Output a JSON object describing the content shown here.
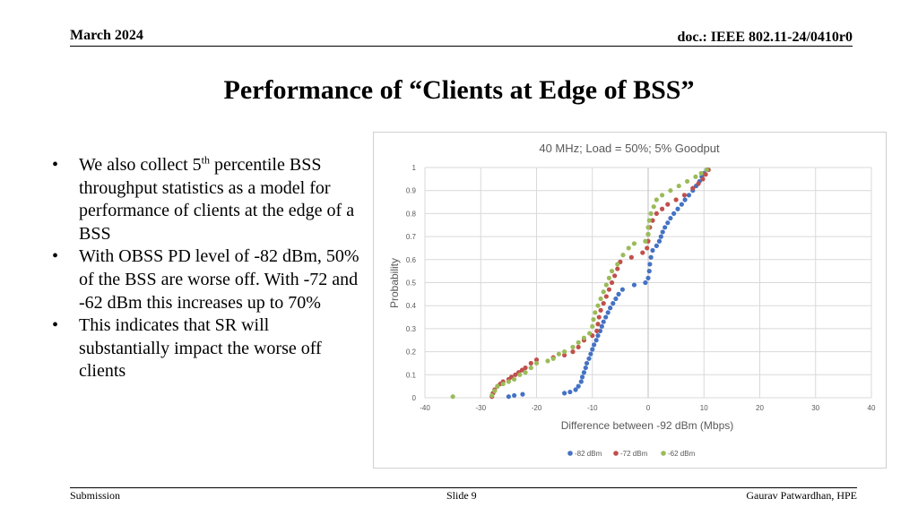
{
  "header": {
    "date": "March 2024",
    "doc_id": "doc.: IEEE 802.11-24/0410r0"
  },
  "title": "Performance of “Clients at Edge of BSS”",
  "bullets": [
    {
      "pre": "We also collect 5",
      "sup": "th",
      "post": " percentile BSS throughput statistics as a model for performance of clients at the edge of a BSS"
    },
    {
      "text": "With OBSS PD level of -82 dBm, 50% of the BSS are worse off. With -72 and -62 dBm this increases up to 70%"
    },
    {
      "text": "This indicates that SR will substantially impact the worse off clients"
    }
  ],
  "bullet_symbol": "•",
  "chart_data": {
    "type": "scatter",
    "title": "40 MHz; Load = 50%; 5% Goodput",
    "xlabel": "Difference between -92 dBm (Mbps)",
    "ylabel": "Probability",
    "xlim": [
      -40,
      40
    ],
    "ylim": [
      0,
      1
    ],
    "xticks": [
      -40,
      -30,
      -20,
      -10,
      0,
      10,
      20,
      30,
      40
    ],
    "yticks": [
      0,
      0.1,
      0.2,
      0.3,
      0.4,
      0.5,
      0.6,
      0.7,
      0.8,
      0.9,
      1
    ],
    "grid": true,
    "legend_position": "bottom",
    "series": [
      {
        "name": "-82 dBm",
        "color": "#4472C4",
        "points": [
          [
            -25,
            0.005
          ],
          [
            -24,
            0.01
          ],
          [
            -22.5,
            0.015
          ],
          [
            -15,
            0.02
          ],
          [
            -14,
            0.025
          ],
          [
            -13,
            0.035
          ],
          [
            -12.5,
            0.05
          ],
          [
            -12,
            0.07
          ],
          [
            -11.8,
            0.09
          ],
          [
            -11.5,
            0.11
          ],
          [
            -11.2,
            0.13
          ],
          [
            -11,
            0.15
          ],
          [
            -10.6,
            0.17
          ],
          [
            -10.3,
            0.19
          ],
          [
            -10,
            0.21
          ],
          [
            -9.7,
            0.23
          ],
          [
            -9.3,
            0.25
          ],
          [
            -9,
            0.27
          ],
          [
            -8.6,
            0.29
          ],
          [
            -8.3,
            0.31
          ],
          [
            -8,
            0.33
          ],
          [
            -7.6,
            0.35
          ],
          [
            -7.2,
            0.37
          ],
          [
            -6.8,
            0.39
          ],
          [
            -6.3,
            0.41
          ],
          [
            -5.8,
            0.43
          ],
          [
            -5.3,
            0.45
          ],
          [
            -4.6,
            0.47
          ],
          [
            -2.5,
            0.49
          ],
          [
            -0.5,
            0.5
          ],
          [
            0,
            0.52
          ],
          [
            0.2,
            0.55
          ],
          [
            0.3,
            0.58
          ],
          [
            0.5,
            0.61
          ],
          [
            0.8,
            0.64
          ],
          [
            1.5,
            0.66
          ],
          [
            2,
            0.68
          ],
          [
            2.3,
            0.7
          ],
          [
            2.6,
            0.72
          ],
          [
            3,
            0.74
          ],
          [
            3.5,
            0.76
          ],
          [
            4,
            0.78
          ],
          [
            4.6,
            0.8
          ],
          [
            5.3,
            0.82
          ],
          [
            6,
            0.84
          ],
          [
            6.6,
            0.86
          ],
          [
            7.3,
            0.88
          ],
          [
            8,
            0.9
          ],
          [
            8.6,
            0.92
          ],
          [
            9.2,
            0.94
          ],
          [
            9.6,
            0.96
          ],
          [
            10,
            0.975
          ],
          [
            10.5,
            0.99
          ]
        ]
      },
      {
        "name": "-72 dBm",
        "color": "#C0504D",
        "points": [
          [
            -28,
            0.005
          ],
          [
            -27.8,
            0.02
          ],
          [
            -27.5,
            0.035
          ],
          [
            -27,
            0.05
          ],
          [
            -26.5,
            0.06
          ],
          [
            -26,
            0.07
          ],
          [
            -25,
            0.08
          ],
          [
            -24.5,
            0.09
          ],
          [
            -23.8,
            0.1
          ],
          [
            -23.2,
            0.11
          ],
          [
            -22.6,
            0.12
          ],
          [
            -22,
            0.13
          ],
          [
            -21,
            0.15
          ],
          [
            -20,
            0.165
          ],
          [
            -17,
            0.175
          ],
          [
            -15,
            0.185
          ],
          [
            -13.5,
            0.2
          ],
          [
            -12.5,
            0.22
          ],
          [
            -11.5,
            0.25
          ],
          [
            -10,
            0.27
          ],
          [
            -9.2,
            0.29
          ],
          [
            -9,
            0.32
          ],
          [
            -8.8,
            0.35
          ],
          [
            -8.5,
            0.38
          ],
          [
            -8,
            0.41
          ],
          [
            -7.5,
            0.44
          ],
          [
            -7,
            0.47
          ],
          [
            -6.5,
            0.5
          ],
          [
            -6,
            0.53
          ],
          [
            -5.5,
            0.56
          ],
          [
            -5,
            0.59
          ],
          [
            -3,
            0.61
          ],
          [
            -1,
            0.63
          ],
          [
            -0.2,
            0.65
          ],
          [
            0,
            0.68
          ],
          [
            0,
            0.71
          ],
          [
            0.3,
            0.74
          ],
          [
            0.8,
            0.77
          ],
          [
            1.5,
            0.8
          ],
          [
            2.5,
            0.82
          ],
          [
            3.5,
            0.84
          ],
          [
            5,
            0.86
          ],
          [
            6.5,
            0.88
          ],
          [
            8,
            0.91
          ],
          [
            9,
            0.93
          ],
          [
            9.8,
            0.95
          ],
          [
            10.3,
            0.97
          ],
          [
            10.8,
            0.99
          ]
        ]
      },
      {
        "name": "-62 dBm",
        "color": "#9BBB59",
        "points": [
          [
            -35,
            0.005
          ],
          [
            -28,
            0.01
          ],
          [
            -27.5,
            0.03
          ],
          [
            -27,
            0.05
          ],
          [
            -26,
            0.06
          ],
          [
            -25,
            0.07
          ],
          [
            -24,
            0.08
          ],
          [
            -23,
            0.1
          ],
          [
            -22,
            0.11
          ],
          [
            -21,
            0.13
          ],
          [
            -20,
            0.15
          ],
          [
            -18,
            0.16
          ],
          [
            -17,
            0.17
          ],
          [
            -16,
            0.19
          ],
          [
            -15,
            0.2
          ],
          [
            -13.5,
            0.22
          ],
          [
            -12.5,
            0.24
          ],
          [
            -11.5,
            0.26
          ],
          [
            -10.5,
            0.28
          ],
          [
            -10,
            0.31
          ],
          [
            -9.8,
            0.34
          ],
          [
            -9.5,
            0.37
          ],
          [
            -9,
            0.4
          ],
          [
            -8.5,
            0.43
          ],
          [
            -8,
            0.46
          ],
          [
            -7.5,
            0.49
          ],
          [
            -7,
            0.52
          ],
          [
            -6.5,
            0.55
          ],
          [
            -5.5,
            0.58
          ],
          [
            -4.5,
            0.62
          ],
          [
            -3.5,
            0.65
          ],
          [
            -2.5,
            0.67
          ],
          [
            -0.5,
            0.68
          ],
          [
            0,
            0.71
          ],
          [
            0,
            0.74
          ],
          [
            0.2,
            0.77
          ],
          [
            0.5,
            0.8
          ],
          [
            1,
            0.83
          ],
          [
            1.5,
            0.86
          ],
          [
            2.5,
            0.88
          ],
          [
            4,
            0.9
          ],
          [
            5.5,
            0.92
          ],
          [
            7,
            0.94
          ],
          [
            8.5,
            0.96
          ],
          [
            9.5,
            0.975
          ],
          [
            10.5,
            0.99
          ]
        ]
      }
    ]
  },
  "footer": {
    "left": "Submission",
    "center": "Slide 9",
    "right": "Gaurav Patwardhan, HPE"
  }
}
